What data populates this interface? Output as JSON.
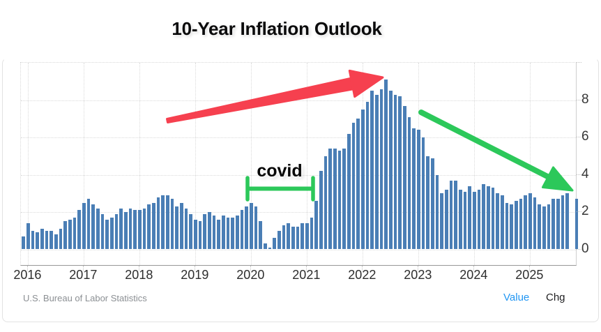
{
  "title": "10-Year Inflation Outlook",
  "annotations": {
    "covid_label": "covid"
  },
  "footer": {
    "source": "U.S. Bureau of Labor Statistics",
    "series_toggles": [
      {
        "label": "Value",
        "active": true
      },
      {
        "label": "Chg",
        "active": false
      }
    ]
  },
  "colors": {
    "bar": "#4a7eb5",
    "red_arrow": "#f6404f",
    "green_annotation": "#2cc85a",
    "value_toggle": "#2196f3",
    "chg_toggle": "#1d1d1f"
  },
  "chart_data": {
    "type": "bar",
    "title": "10-Year Inflation Outlook",
    "x_start_month": "2015-12",
    "x_end_month": "2025-11",
    "missing_months": [
      "2025-10"
    ],
    "x_tick_labels": [
      "2016",
      "2017",
      "2018",
      "2019",
      "2020",
      "2021",
      "2022",
      "2023",
      "2024",
      "2025"
    ],
    "y_ticks": [
      0,
      2,
      4,
      6,
      8
    ],
    "ylim": [
      -1,
      10
    ],
    "grid": true,
    "legend": "none",
    "series": [
      {
        "name": "Value",
        "values": [
          0.7,
          1.4,
          1.0,
          0.9,
          1.1,
          1.0,
          1.0,
          0.8,
          1.1,
          1.5,
          1.6,
          1.7,
          2.1,
          2.5,
          2.7,
          2.4,
          2.2,
          1.9,
          1.6,
          1.7,
          1.9,
          2.2,
          2.0,
          2.2,
          2.1,
          2.1,
          2.2,
          2.4,
          2.5,
          2.8,
          2.9,
          2.9,
          2.7,
          2.3,
          2.5,
          2.2,
          1.9,
          1.6,
          1.5,
          1.9,
          2.0,
          1.8,
          1.6,
          1.8,
          1.7,
          1.7,
          1.8,
          2.1,
          2.3,
          2.5,
          2.3,
          1.5,
          0.3,
          0.1,
          0.6,
          1.0,
          1.3,
          1.4,
          1.2,
          1.2,
          1.4,
          1.4,
          1.7,
          2.6,
          4.2,
          5.0,
          5.4,
          5.4,
          5.3,
          5.4,
          6.2,
          6.8,
          7.0,
          7.5,
          7.9,
          8.5,
          8.3,
          8.6,
          9.1,
          8.5,
          8.3,
          8.2,
          7.7,
          7.1,
          6.5,
          6.4,
          6.0,
          5.0,
          4.9,
          4.0,
          3.0,
          3.2,
          3.7,
          3.7,
          3.2,
          3.1,
          3.4,
          3.1,
          3.2,
          3.5,
          3.4,
          3.3,
          3.0,
          2.9,
          2.5,
          2.4,
          2.6,
          2.7,
          2.9,
          3.0,
          2.8,
          2.4,
          2.3,
          2.4,
          2.7,
          2.7,
          2.9,
          3.0,
          null,
          2.7
        ]
      }
    ]
  }
}
